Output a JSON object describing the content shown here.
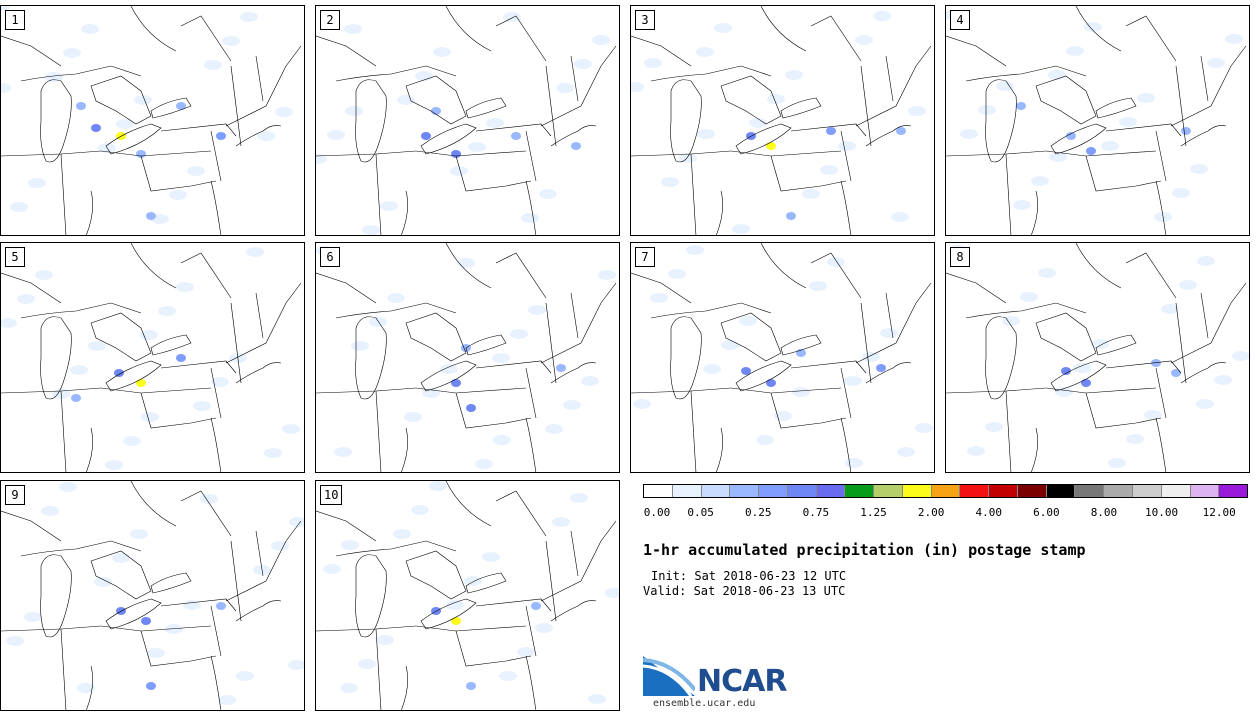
{
  "panels": [
    {
      "label": "1"
    },
    {
      "label": "2"
    },
    {
      "label": "3"
    },
    {
      "label": "4"
    },
    {
      "label": "5"
    },
    {
      "label": "6"
    },
    {
      "label": "7"
    },
    {
      "label": "8"
    },
    {
      "label": "9"
    },
    {
      "label": "10"
    }
  ],
  "colorbar": {
    "colors": [
      "#ffffff",
      "#e8f2ff",
      "#c7dcff",
      "#9ab8ff",
      "#7f9cff",
      "#6f86f5",
      "#6a6cf0",
      "#079b1a",
      "#b5cf6b",
      "#fcfc1b",
      "#f7a316",
      "#f21212",
      "#c20000",
      "#7a0000",
      "#000000",
      "#777777",
      "#aaaaaa",
      "#cccccc",
      "#eeeeee",
      "#deb3f2",
      "#9a1ad9"
    ],
    "ticks": [
      "0.00",
      "0.05",
      "0.25",
      "0.75",
      "1.25",
      "2.00",
      "4.00",
      "6.00",
      "8.00",
      "10.00",
      "12.00"
    ]
  },
  "title": "1-hr accumulated precipitation (in) postage stamp",
  "init": "Init: Sat 2018-06-23 12 UTC",
  "valid": "Valid: Sat 2018-06-23 13 UTC",
  "logo": {
    "text": "NCAR",
    "url": "ensemble.ucar.edu"
  }
}
